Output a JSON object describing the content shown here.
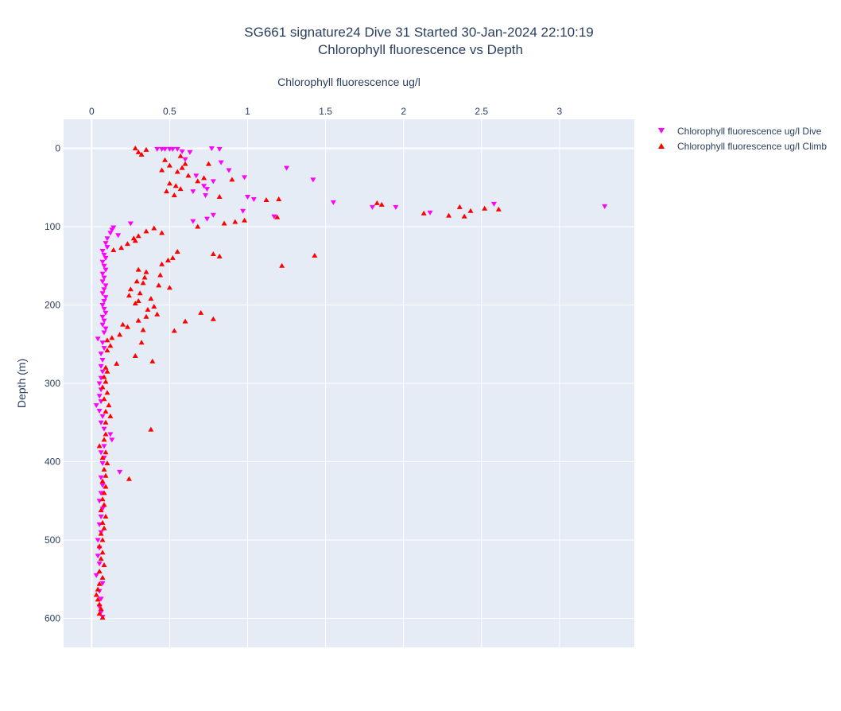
{
  "chart_data": {
    "type": "scatter",
    "title": "SG661 signature24 Dive 31 Started 30-Jan-2024 22:10:19",
    "subtitle": "Chlorophyll fluorescence vs Depth",
    "xlabel": "Chlorophyll fluorescence ug/l",
    "ylabel": "Depth (m)",
    "xlim": [
      -0.18,
      3.48
    ],
    "ylim": [
      -37,
      637
    ],
    "x_axis_position": "top",
    "y_axis_reversed": true,
    "grid": true,
    "legend_position": "top-right",
    "x_ticks": [
      {
        "value": 0,
        "label": "0"
      },
      {
        "value": 0.5,
        "label": "0.5"
      },
      {
        "value": 1,
        "label": "1"
      },
      {
        "value": 1.5,
        "label": "1.5"
      },
      {
        "value": 2,
        "label": "2"
      },
      {
        "value": 2.5,
        "label": "2.5"
      },
      {
        "value": 3,
        "label": "3"
      }
    ],
    "y_ticks": [
      {
        "value": 0,
        "label": "0"
      },
      {
        "value": 100,
        "label": "100"
      },
      {
        "value": 200,
        "label": "200"
      },
      {
        "value": 300,
        "label": "300"
      },
      {
        "value": 400,
        "label": "400"
      },
      {
        "value": 500,
        "label": "500"
      },
      {
        "value": 600,
        "label": "600"
      }
    ],
    "series": [
      {
        "name": "Chlorophyll fluorescence ug/l Dive",
        "color": "#ff00ff",
        "marker": "triangle-down",
        "points": [
          [
            0.42,
            1
          ],
          [
            0.45,
            1
          ],
          [
            0.47,
            1
          ],
          [
            0.5,
            1
          ],
          [
            0.52,
            1
          ],
          [
            0.55,
            1
          ],
          [
            0.58,
            4
          ],
          [
            0.77,
            0
          ],
          [
            0.82,
            1
          ],
          [
            0.63,
            5
          ],
          [
            0.6,
            14
          ],
          [
            0.83,
            18
          ],
          [
            1.25,
            25
          ],
          [
            0.88,
            28
          ],
          [
            0.67,
            35
          ],
          [
            0.98,
            37
          ],
          [
            1.42,
            40
          ],
          [
            0.78,
            42
          ],
          [
            0.72,
            48
          ],
          [
            0.74,
            52
          ],
          [
            0.65,
            55
          ],
          [
            0.73,
            60
          ],
          [
            1.0,
            62
          ],
          [
            1.04,
            65
          ],
          [
            1.55,
            69
          ],
          [
            2.58,
            71
          ],
          [
            3.29,
            74
          ],
          [
            1.95,
            75
          ],
          [
            1.8,
            75
          ],
          [
            0.97,
            80
          ],
          [
            0.78,
            85
          ],
          [
            1.17,
            87
          ],
          [
            0.74,
            90
          ],
          [
            0.65,
            93
          ],
          [
            2.17,
            82
          ],
          [
            0.25,
            96
          ],
          [
            0.14,
            101
          ],
          [
            0.13,
            104
          ],
          [
            0.12,
            108
          ],
          [
            0.17,
            111
          ],
          [
            0.1,
            115
          ],
          [
            0.09,
            121
          ],
          [
            0.1,
            126
          ],
          [
            0.07,
            131
          ],
          [
            0.08,
            136
          ],
          [
            0.09,
            140
          ],
          [
            0.07,
            145
          ],
          [
            0.08,
            150
          ],
          [
            0.09,
            155
          ],
          [
            0.07,
            160
          ],
          [
            0.08,
            165
          ],
          [
            0.07,
            170
          ],
          [
            0.09,
            175
          ],
          [
            0.08,
            180
          ],
          [
            0.07,
            185
          ],
          [
            0.09,
            190
          ],
          [
            0.08,
            195
          ],
          [
            0.07,
            200
          ],
          [
            0.08,
            205
          ],
          [
            0.09,
            210
          ],
          [
            0.07,
            215
          ],
          [
            0.08,
            220
          ],
          [
            0.07,
            225
          ],
          [
            0.09,
            230
          ],
          [
            0.08,
            235
          ],
          [
            0.04,
            243
          ],
          [
            0.07,
            248
          ],
          [
            0.08,
            255
          ],
          [
            0.06,
            262
          ],
          [
            0.07,
            270
          ],
          [
            0.06,
            278
          ],
          [
            0.07,
            285
          ],
          [
            0.06,
            293
          ],
          [
            0.05,
            300
          ],
          [
            0.06,
            308
          ],
          [
            0.05,
            316
          ],
          [
            0.06,
            323
          ],
          [
            0.03,
            328
          ],
          [
            0.05,
            335
          ],
          [
            0.07,
            342
          ],
          [
            0.06,
            350
          ],
          [
            0.08,
            358
          ],
          [
            0.12,
            365
          ],
          [
            0.13,
            372
          ],
          [
            0.08,
            380
          ],
          [
            0.06,
            388
          ],
          [
            0.08,
            395
          ],
          [
            0.07,
            402
          ],
          [
            0.18,
            413
          ],
          [
            0.06,
            420
          ],
          [
            0.07,
            430
          ],
          [
            0.06,
            440
          ],
          [
            0.05,
            450
          ],
          [
            0.07,
            460
          ],
          [
            0.06,
            470
          ],
          [
            0.05,
            480
          ],
          [
            0.06,
            490
          ],
          [
            0.04,
            500
          ],
          [
            0.05,
            510
          ],
          [
            0.04,
            520
          ],
          [
            0.05,
            530
          ],
          [
            0.03,
            545
          ],
          [
            0.07,
            555
          ],
          [
            0.05,
            565
          ],
          [
            0.06,
            575
          ],
          [
            0.05,
            585
          ],
          [
            0.06,
            592
          ],
          [
            0.07,
            598
          ]
        ]
      },
      {
        "name": "Chlorophyll fluorescence ug/l Climb",
        "color": "#ff0000",
        "marker": "triangle-up",
        "points": [
          [
            0.28,
            0
          ],
          [
            0.35,
            2
          ],
          [
            0.3,
            5
          ],
          [
            0.32,
            8
          ],
          [
            0.47,
            15
          ],
          [
            0.57,
            10
          ],
          [
            0.6,
            20
          ],
          [
            0.5,
            22
          ],
          [
            0.58,
            25
          ],
          [
            0.45,
            28
          ],
          [
            0.55,
            30
          ],
          [
            0.75,
            20
          ],
          [
            0.62,
            35
          ],
          [
            0.72,
            38
          ],
          [
            0.9,
            40
          ],
          [
            0.68,
            42
          ],
          [
            0.5,
            45
          ],
          [
            0.54,
            48
          ],
          [
            0.57,
            52
          ],
          [
            0.48,
            55
          ],
          [
            0.53,
            60
          ],
          [
            0.82,
            62
          ],
          [
            1.12,
            66
          ],
          [
            1.2,
            65
          ],
          [
            1.83,
            70
          ],
          [
            1.86,
            72
          ],
          [
            2.36,
            75
          ],
          [
            2.52,
            77
          ],
          [
            2.61,
            78
          ],
          [
            2.43,
            80
          ],
          [
            2.13,
            83
          ],
          [
            2.29,
            86
          ],
          [
            2.39,
            87
          ],
          [
            1.19,
            88
          ],
          [
            0.98,
            92
          ],
          [
            0.92,
            94
          ],
          [
            0.85,
            96
          ],
          [
            0.68,
            100
          ],
          [
            0.4,
            102
          ],
          [
            0.35,
            106
          ],
          [
            0.45,
            108
          ],
          [
            0.3,
            112
          ],
          [
            0.27,
            115
          ],
          [
            0.28,
            118
          ],
          [
            0.23,
            122
          ],
          [
            0.19,
            127
          ],
          [
            0.14,
            130
          ],
          [
            0.55,
            132
          ],
          [
            0.78,
            135
          ],
          [
            0.82,
            138
          ],
          [
            1.43,
            137
          ],
          [
            0.52,
            140
          ],
          [
            0.49,
            143
          ],
          [
            0.45,
            148
          ],
          [
            1.22,
            150
          ],
          [
            0.3,
            155
          ],
          [
            0.35,
            158
          ],
          [
            0.44,
            162
          ],
          [
            0.34,
            165
          ],
          [
            0.29,
            170
          ],
          [
            0.33,
            172
          ],
          [
            0.43,
            175
          ],
          [
            0.5,
            178
          ],
          [
            0.25,
            180
          ],
          [
            0.31,
            185
          ],
          [
            0.24,
            188
          ],
          [
            0.38,
            192
          ],
          [
            0.3,
            195
          ],
          [
            0.28,
            198
          ],
          [
            0.4,
            202
          ],
          [
            0.36,
            206
          ],
          [
            0.7,
            210
          ],
          [
            0.42,
            212
          ],
          [
            0.35,
            215
          ],
          [
            0.78,
            218
          ],
          [
            0.3,
            220
          ],
          [
            0.6,
            221
          ],
          [
            0.2,
            225
          ],
          [
            0.23,
            228
          ],
          [
            0.33,
            232
          ],
          [
            0.53,
            233
          ],
          [
            0.18,
            238
          ],
          [
            0.13,
            242
          ],
          [
            0.1,
            245
          ],
          [
            0.32,
            248
          ],
          [
            0.12,
            252
          ],
          [
            0.1,
            258
          ],
          [
            0.28,
            265
          ],
          [
            0.39,
            272
          ],
          [
            0.16,
            275
          ],
          [
            0.09,
            280
          ],
          [
            0.1,
            285
          ],
          [
            0.08,
            292
          ],
          [
            0.09,
            298
          ],
          [
            0.07,
            305
          ],
          [
            0.1,
            312
          ],
          [
            0.08,
            320
          ],
          [
            0.11,
            328
          ],
          [
            0.09,
            336
          ],
          [
            0.12,
            342
          ],
          [
            0.09,
            350
          ],
          [
            0.38,
            359
          ],
          [
            0.09,
            365
          ],
          [
            0.08,
            372
          ],
          [
            0.05,
            380
          ],
          [
            0.09,
            388
          ],
          [
            0.07,
            395
          ],
          [
            0.1,
            402
          ],
          [
            0.08,
            410
          ],
          [
            0.24,
            422
          ],
          [
            0.09,
            418
          ],
          [
            0.07,
            425
          ],
          [
            0.09,
            432
          ],
          [
            0.08,
            440
          ],
          [
            0.07,
            448
          ],
          [
            0.08,
            455
          ],
          [
            0.06,
            462
          ],
          [
            0.09,
            470
          ],
          [
            0.07,
            478
          ],
          [
            0.08,
            485
          ],
          [
            0.06,
            492
          ],
          [
            0.07,
            500
          ],
          [
            0.05,
            508
          ],
          [
            0.07,
            516
          ],
          [
            0.06,
            524
          ],
          [
            0.08,
            532
          ],
          [
            0.05,
            540
          ],
          [
            0.07,
            548
          ],
          [
            0.05,
            556
          ],
          [
            0.04,
            563
          ],
          [
            0.03,
            570
          ],
          [
            0.04,
            576
          ],
          [
            0.05,
            582
          ],
          [
            0.06,
            588
          ],
          [
            0.05,
            594
          ],
          [
            0.07,
            599
          ]
        ]
      }
    ]
  }
}
